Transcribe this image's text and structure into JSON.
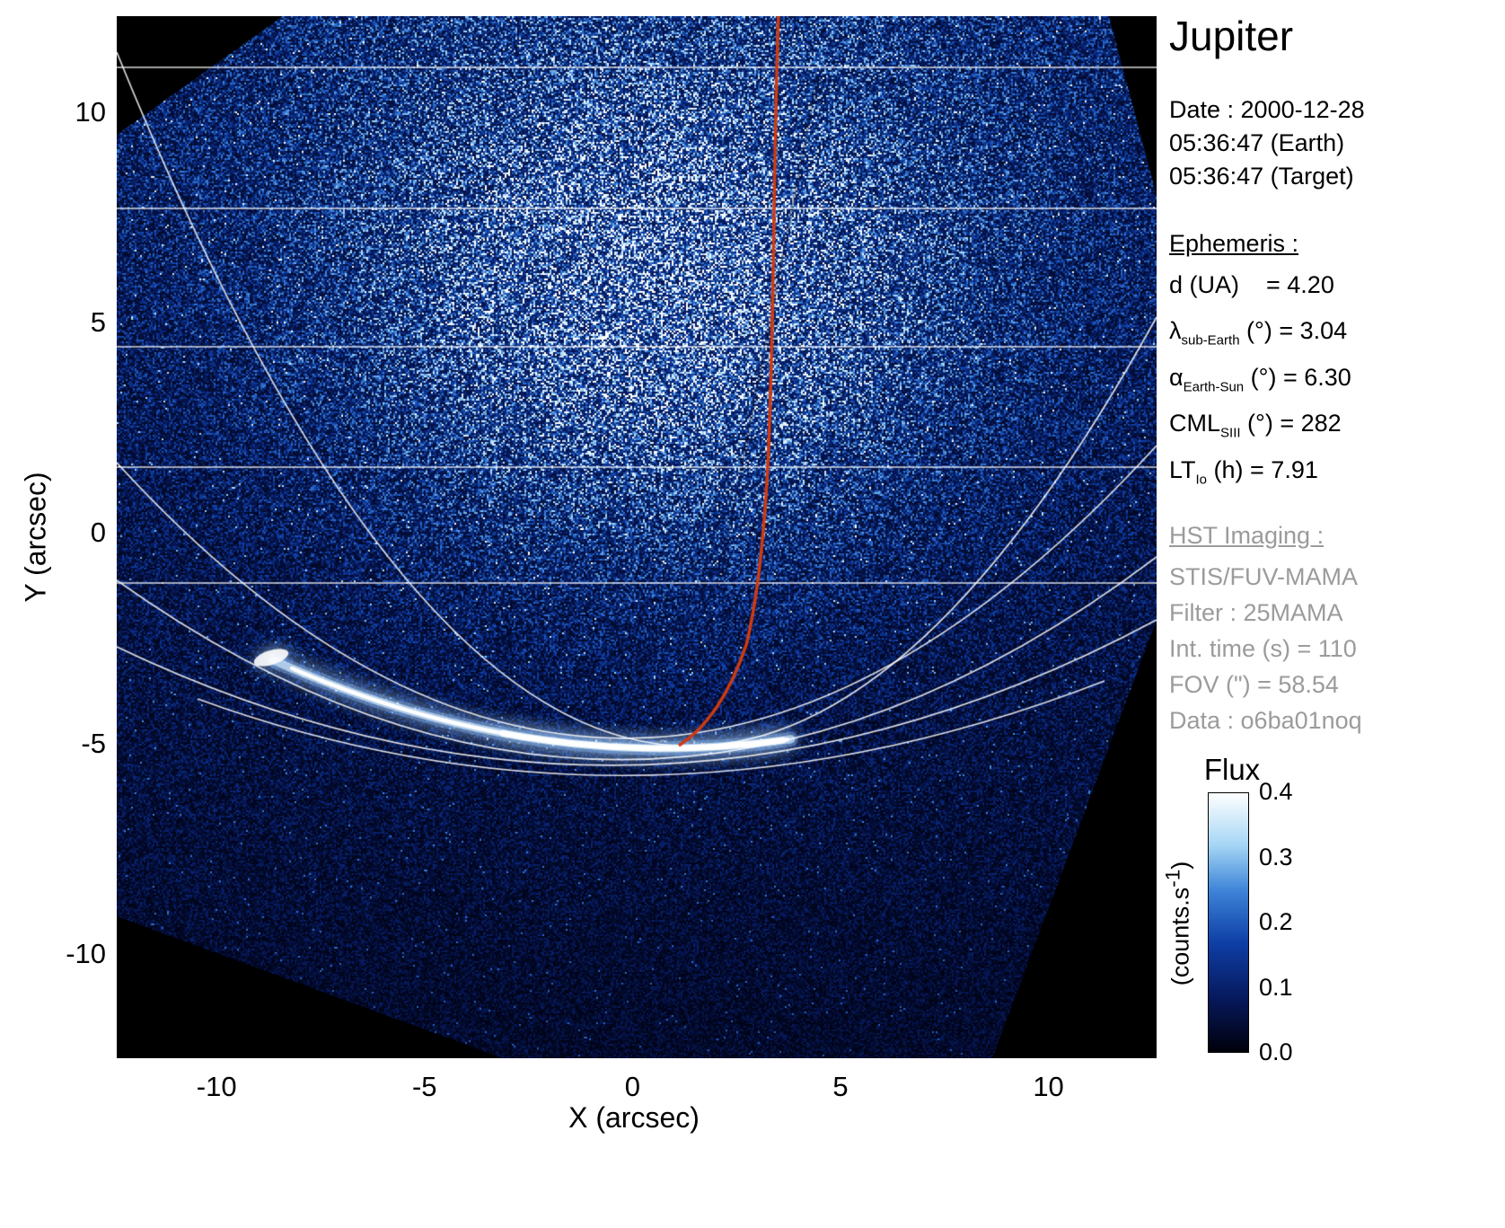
{
  "info_panel": {
    "title": "Jupiter",
    "date_lines": [
      "Date : 2000-12-28",
      "05:36:47 (Earth)",
      "05:36:47 (Target)"
    ],
    "ephemeris": {
      "heading": "Ephemeris :",
      "rows": [
        {
          "base": "d (UA)",
          "sub": "",
          "rest": "    = 4.20"
        },
        {
          "base": "λ",
          "sub": "sub-Earth",
          "rest": " (°) = 3.04"
        },
        {
          "base": "α",
          "sub": "Earth-Sun",
          "rest": " (°) = 6.30"
        },
        {
          "base": "CML",
          "sub": "SIII",
          "rest": " (°) = 282"
        },
        {
          "base": "LT",
          "sub": "Io",
          "rest": " (h) = 7.91"
        }
      ]
    },
    "hst": {
      "heading": "HST Imaging :",
      "lines": [
        "STIS/FUV-MAMA",
        "Filter : 25MAMA",
        "Int. time (s) = 110",
        "FOV (\") = 58.54",
        "Data : o6ba01noq"
      ]
    }
  },
  "chart_data": {
    "type": "heatmap",
    "title": "Jupiter",
    "xlabel": "X (arcsec)",
    "ylabel": "Y (arcsec)",
    "xlim": [
      -12.4,
      12.6
    ],
    "ylim": [
      -12.45,
      12.3
    ],
    "xticks": [
      -10,
      -5,
      0,
      5,
      10
    ],
    "yticks": [
      -10,
      -5,
      0,
      5,
      10
    ],
    "grid": "white planetary latitude/longitude graticule overlaid on image",
    "colorbar": {
      "label": "Flux",
      "unit_pre": "(counts.s",
      "unit_sup": "-1",
      "unit_post": ")",
      "min": 0.0,
      "max": 0.4,
      "tick_labels": [
        "0.4",
        "0.3",
        "0.2",
        "0.1",
        "0.0"
      ],
      "colors": [
        {
          "pos": 0.0,
          "color": "#00000a"
        },
        {
          "pos": 0.2,
          "color": "#06185a"
        },
        {
          "pos": 0.42,
          "color": "#0e3ea5"
        },
        {
          "pos": 0.62,
          "color": "#3c82d7"
        },
        {
          "pos": 0.8,
          "color": "#a5d6f5"
        },
        {
          "pos": 1.0,
          "color": "#ffffff"
        }
      ]
    },
    "image_content": {
      "description": "HST FUV image of Jupiter: speckled blue emission filling a rotated detector field on a black background; bright white southern auroral arc near y = -4.5 arcsec spanning x = -9 to 4 arcsec; red meridian line running from the top of the frame down to the auroral arc",
      "aurora_y_arcsec": -4.5,
      "aurora_x_range_arcsec": [
        -9,
        4
      ],
      "meridian_color": "#d03a10",
      "background": "#000000"
    }
  }
}
